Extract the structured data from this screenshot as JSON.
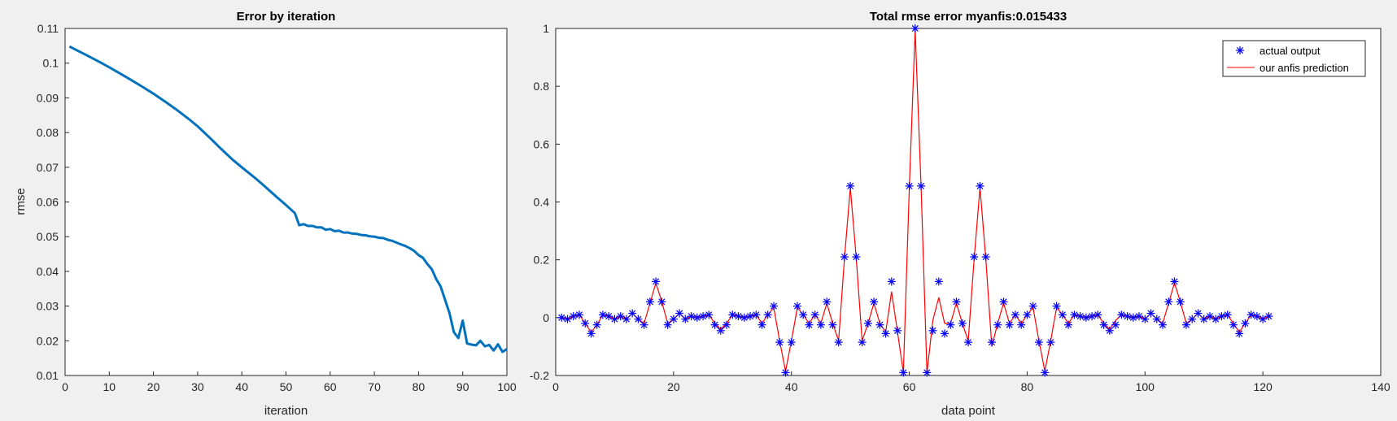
{
  "colors": {
    "figure_bg": "#f0f0f0",
    "axes_bg": "#ffffff",
    "axes_line": "#262626",
    "left_line": "#0072bd",
    "marker": "#0000ff",
    "prediction_line": "#ff0000"
  },
  "chart_data": [
    {
      "type": "line",
      "title": "Error by iteration",
      "xlabel": "iteration",
      "ylabel": "rmse",
      "xlim": [
        0,
        100
      ],
      "ylim": [
        0.01,
        0.11
      ],
      "xticks": [
        "0",
        "10",
        "20",
        "30",
        "40",
        "50",
        "60",
        "70",
        "80",
        "90",
        "100"
      ],
      "yticks": [
        "0.01",
        "0.02",
        "0.03",
        "0.04",
        "0.05",
        "0.06",
        "0.07",
        "0.08",
        "0.09",
        "0.1",
        "0.11"
      ],
      "grid": false,
      "series": [
        {
          "x": [
            1,
            3,
            5,
            8,
            10,
            13,
            15,
            18,
            20,
            23,
            25,
            28,
            30,
            33,
            35,
            38,
            40,
            43,
            45,
            48,
            50,
            52,
            53,
            54,
            55,
            56,
            57,
            58,
            59,
            60,
            61,
            62,
            63,
            64,
            65,
            66,
            67,
            68,
            69,
            70,
            71,
            72,
            73,
            74,
            75,
            76,
            77,
            78,
            79,
            80,
            81,
            82,
            83,
            84,
            85,
            86,
            87,
            88,
            89,
            90,
            91,
            92,
            93,
            94,
            95,
            96,
            97,
            98,
            99,
            100
          ],
          "y": [
            0.1048,
            0.1035,
            0.1022,
            0.1002,
            0.0988,
            0.0966,
            0.0951,
            0.0928,
            0.0912,
            0.0886,
            0.0868,
            0.0839,
            0.0818,
            0.0782,
            0.0757,
            0.0721,
            0.07,
            0.0669,
            0.0647,
            0.0613,
            0.0591,
            0.0568,
            0.0533,
            0.0536,
            0.0531,
            0.0531,
            0.0527,
            0.0527,
            0.052,
            0.0522,
            0.0516,
            0.0517,
            0.0512,
            0.0512,
            0.0509,
            0.0508,
            0.0505,
            0.0504,
            0.0501,
            0.05,
            0.0497,
            0.0496,
            0.0491,
            0.0488,
            0.0483,
            0.0478,
            0.0473,
            0.0467,
            0.0459,
            0.0447,
            0.0439,
            0.0421,
            0.0406,
            0.0378,
            0.0357,
            0.0318,
            0.028,
            0.0225,
            0.0208,
            0.0258,
            0.0192,
            0.0189,
            0.0187,
            0.02,
            0.0184,
            0.0188,
            0.0172,
            0.019,
            0.0168,
            0.0176
          ]
        }
      ]
    },
    {
      "type": "line",
      "title": "Total rmse error myanfis:0.015433",
      "xlabel": "data point",
      "ylabel": "",
      "xlim": [
        0,
        140
      ],
      "ylim": [
        -0.2,
        1
      ],
      "xticks": [
        "0",
        "20",
        "40",
        "60",
        "80",
        "100",
        "120",
        "140"
      ],
      "yticks": [
        "-0.2",
        "0",
        "0.2",
        "0.4",
        "0.6",
        "0.8",
        "1"
      ],
      "grid": false,
      "legend_position": "top-right",
      "legend": [
        "actual output",
        "our anfis prediction"
      ],
      "x": [
        1,
        2,
        3,
        4,
        5,
        6,
        7,
        8,
        9,
        10,
        11,
        12,
        13,
        14,
        15,
        16,
        17,
        18,
        19,
        20,
        21,
        22,
        23,
        24,
        25,
        26,
        27,
        28,
        29,
        30,
        31,
        32,
        33,
        34,
        35,
        36,
        37,
        38,
        39,
        40,
        41,
        42,
        43,
        44,
        45,
        46,
        47,
        48,
        49,
        50,
        51,
        52,
        53,
        54,
        55,
        56,
        57,
        58,
        59,
        60,
        61,
        62,
        63,
        64,
        65,
        66,
        67,
        68,
        69,
        70,
        71,
        72,
        73,
        74,
        75,
        76,
        77,
        78,
        79,
        80,
        81,
        82,
        83,
        84,
        85,
        86,
        87,
        88,
        89,
        90,
        91,
        92,
        93,
        94,
        95,
        96,
        97,
        98,
        99,
        100,
        101,
        102,
        103,
        104,
        105,
        106,
        107,
        108,
        109,
        110,
        111,
        112,
        113,
        114,
        115,
        116,
        117,
        118,
        119,
        120,
        121
      ],
      "series": [
        {
          "name": "actual output",
          "values": [
            0,
            -0.005,
            0.005,
            0.01,
            -0.02,
            -0.055,
            -0.025,
            0.01,
            0.005,
            -0.005,
            0.005,
            -0.005,
            0.015,
            -0.005,
            -0.025,
            0.055,
            0.125,
            0.055,
            -0.025,
            -0.005,
            0.015,
            -0.005,
            0.005,
            0.0,
            0.005,
            0.01,
            -0.025,
            -0.045,
            -0.025,
            0.01,
            0.005,
            0.0,
            0.005,
            0.01,
            -0.025,
            0.01,
            0.04,
            -0.085,
            -0.19,
            -0.085,
            0.04,
            0.01,
            -0.025,
            0.01,
            -0.025,
            0.055,
            -0.025,
            -0.085,
            0.21,
            0.455,
            0.21,
            -0.085,
            -0.02,
            0.055,
            -0.025,
            -0.055,
            0.125,
            -0.045,
            -0.19,
            0.455,
            1.0,
            0.455,
            -0.19,
            -0.045,
            0.125,
            -0.055,
            -0.025,
            0.055,
            -0.02,
            -0.085,
            0.21,
            0.455,
            0.21,
            -0.085,
            -0.025,
            0.055,
            -0.025,
            0.01,
            -0.025,
            0.01,
            0.04,
            -0.085,
            -0.19,
            -0.085,
            0.04,
            0.01,
            -0.025,
            0.01,
            0.005,
            0.0,
            0.005,
            0.01,
            -0.025,
            -0.045,
            -0.025,
            0.01,
            0.005,
            0.0,
            0.005,
            -0.005,
            0.015,
            -0.005,
            -0.025,
            0.055,
            0.125,
            0.055,
            -0.025,
            -0.005,
            0.015,
            -0.005,
            0.005,
            -0.005,
            0.005,
            0.01,
            -0.025,
            -0.055,
            -0.02,
            0.01,
            0.005,
            -0.005,
            0.005
          ]
        },
        {
          "name": "our anfis prediction",
          "values": [
            0,
            -0.005,
            0.005,
            0.01,
            -0.02,
            -0.05,
            -0.025,
            0.01,
            0.005,
            -0.005,
            0.005,
            -0.005,
            0.015,
            -0.005,
            -0.02,
            0.05,
            0.12,
            0.055,
            -0.02,
            -0.005,
            0.015,
            -0.005,
            0.005,
            0.0,
            0.005,
            0.01,
            -0.02,
            -0.04,
            -0.02,
            0.01,
            0.005,
            0.0,
            0.005,
            0.01,
            -0.02,
            0.01,
            0.035,
            -0.08,
            -0.185,
            -0.08,
            0.035,
            0.01,
            -0.02,
            0.01,
            -0.02,
            0.05,
            -0.02,
            -0.08,
            0.205,
            0.45,
            0.205,
            -0.08,
            -0.02,
            0.05,
            -0.02,
            -0.05,
            0.09,
            -0.05,
            -0.19,
            0.45,
            0.995,
            0.45,
            -0.19,
            -0.01,
            0.07,
            -0.02,
            -0.02,
            0.05,
            -0.02,
            -0.08,
            0.2,
            0.45,
            0.2,
            -0.1,
            -0.02,
            0.05,
            -0.02,
            0.01,
            -0.02,
            0.01,
            0.035,
            -0.08,
            -0.185,
            -0.08,
            0.035,
            0.01,
            -0.02,
            0.01,
            0.005,
            0.0,
            0.005,
            0.01,
            -0.02,
            -0.04,
            -0.01,
            0.01,
            0.005,
            0.0,
            0.005,
            -0.005,
            0.015,
            -0.005,
            -0.02,
            0.05,
            0.12,
            0.055,
            -0.02,
            -0.005,
            0.015,
            -0.005,
            0.005,
            -0.005,
            0.005,
            0.01,
            -0.02,
            -0.05,
            -0.02,
            0.01,
            0.005,
            -0.005,
            0.005
          ]
        }
      ]
    }
  ]
}
